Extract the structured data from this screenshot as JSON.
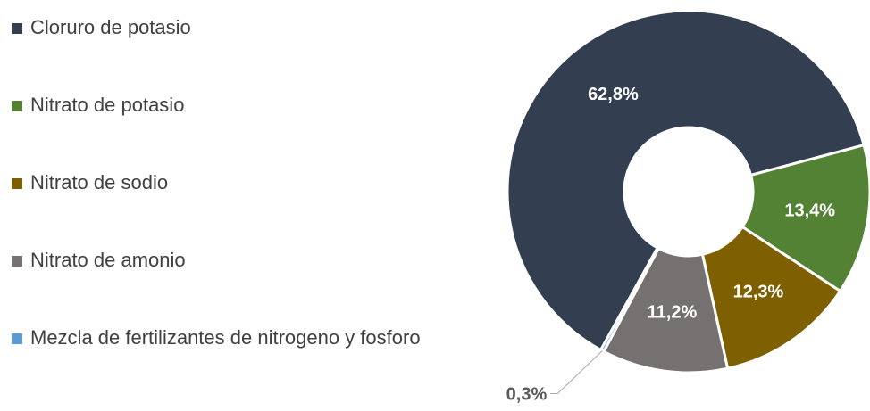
{
  "chart_data": {
    "type": "donut",
    "categories": [
      "Cloruro de potasio",
      "Nitrato de potasio",
      "Nitrato de sodio",
      "Nitrato de amonio",
      "Mezcla de fertilizantes de nitrogeno y fosforo"
    ],
    "values": [
      62.8,
      13.4,
      12.3,
      11.2,
      0.3
    ],
    "value_labels": [
      "62,8%",
      "13,4%",
      "12,3%",
      "11,2%",
      "0,3%"
    ],
    "colors": [
      "#333f50",
      "#548235",
      "#7f6000",
      "#767171",
      "#5b9bd5"
    ],
    "legend": "left"
  }
}
